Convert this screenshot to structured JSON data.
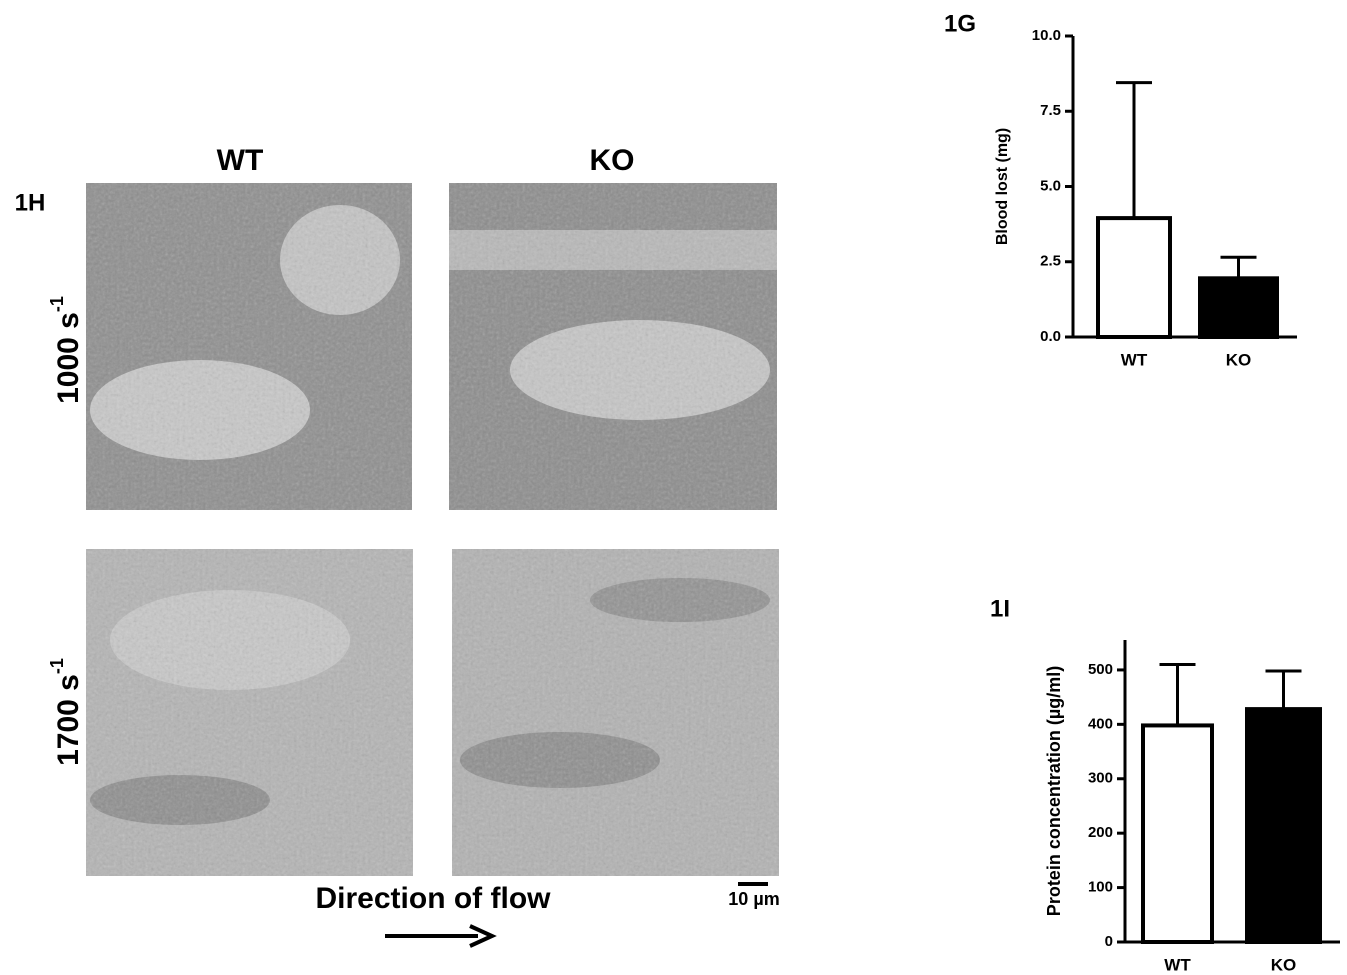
{
  "figure_1h": {
    "label": "1H",
    "columns": [
      "WT",
      "KO"
    ],
    "rows": [
      {
        "text": "1000 s",
        "exponent": "-1"
      },
      {
        "text": "1700 s",
        "exponent": "-1"
      }
    ],
    "flow_label": "Direction of flow",
    "scale_label": "10 µm"
  },
  "chart_data": [
    {
      "type": "bar",
      "title": "1G",
      "ylabel": "Blood lost (mg)",
      "categories": [
        "WT",
        "KO"
      ],
      "values": [
        3.95,
        1.95
      ],
      "errors": [
        4.5,
        0.7
      ],
      "colors": [
        "#ffffff",
        "#000000"
      ],
      "ylim": [
        0,
        10
      ],
      "yticks": [
        {
          "value": 0,
          "label": "0.0"
        },
        {
          "value": 2.5,
          "label": "2.5"
        },
        {
          "value": 5,
          "label": "5.0"
        },
        {
          "value": 7.5,
          "label": "7.5"
        },
        {
          "value": 10,
          "label": "10.0"
        }
      ]
    },
    {
      "type": "bar",
      "title": "1I",
      "ylabel": "Protein concentration (µg/ml)",
      "categories": [
        "WT",
        "KO"
      ],
      "values": [
        398,
        428
      ],
      "errors": [
        112,
        70
      ],
      "colors": [
        "#ffffff",
        "#000000"
      ],
      "ylim": [
        0,
        555
      ],
      "yticks": [
        0,
        100,
        200,
        300,
        400,
        500
      ]
    }
  ]
}
